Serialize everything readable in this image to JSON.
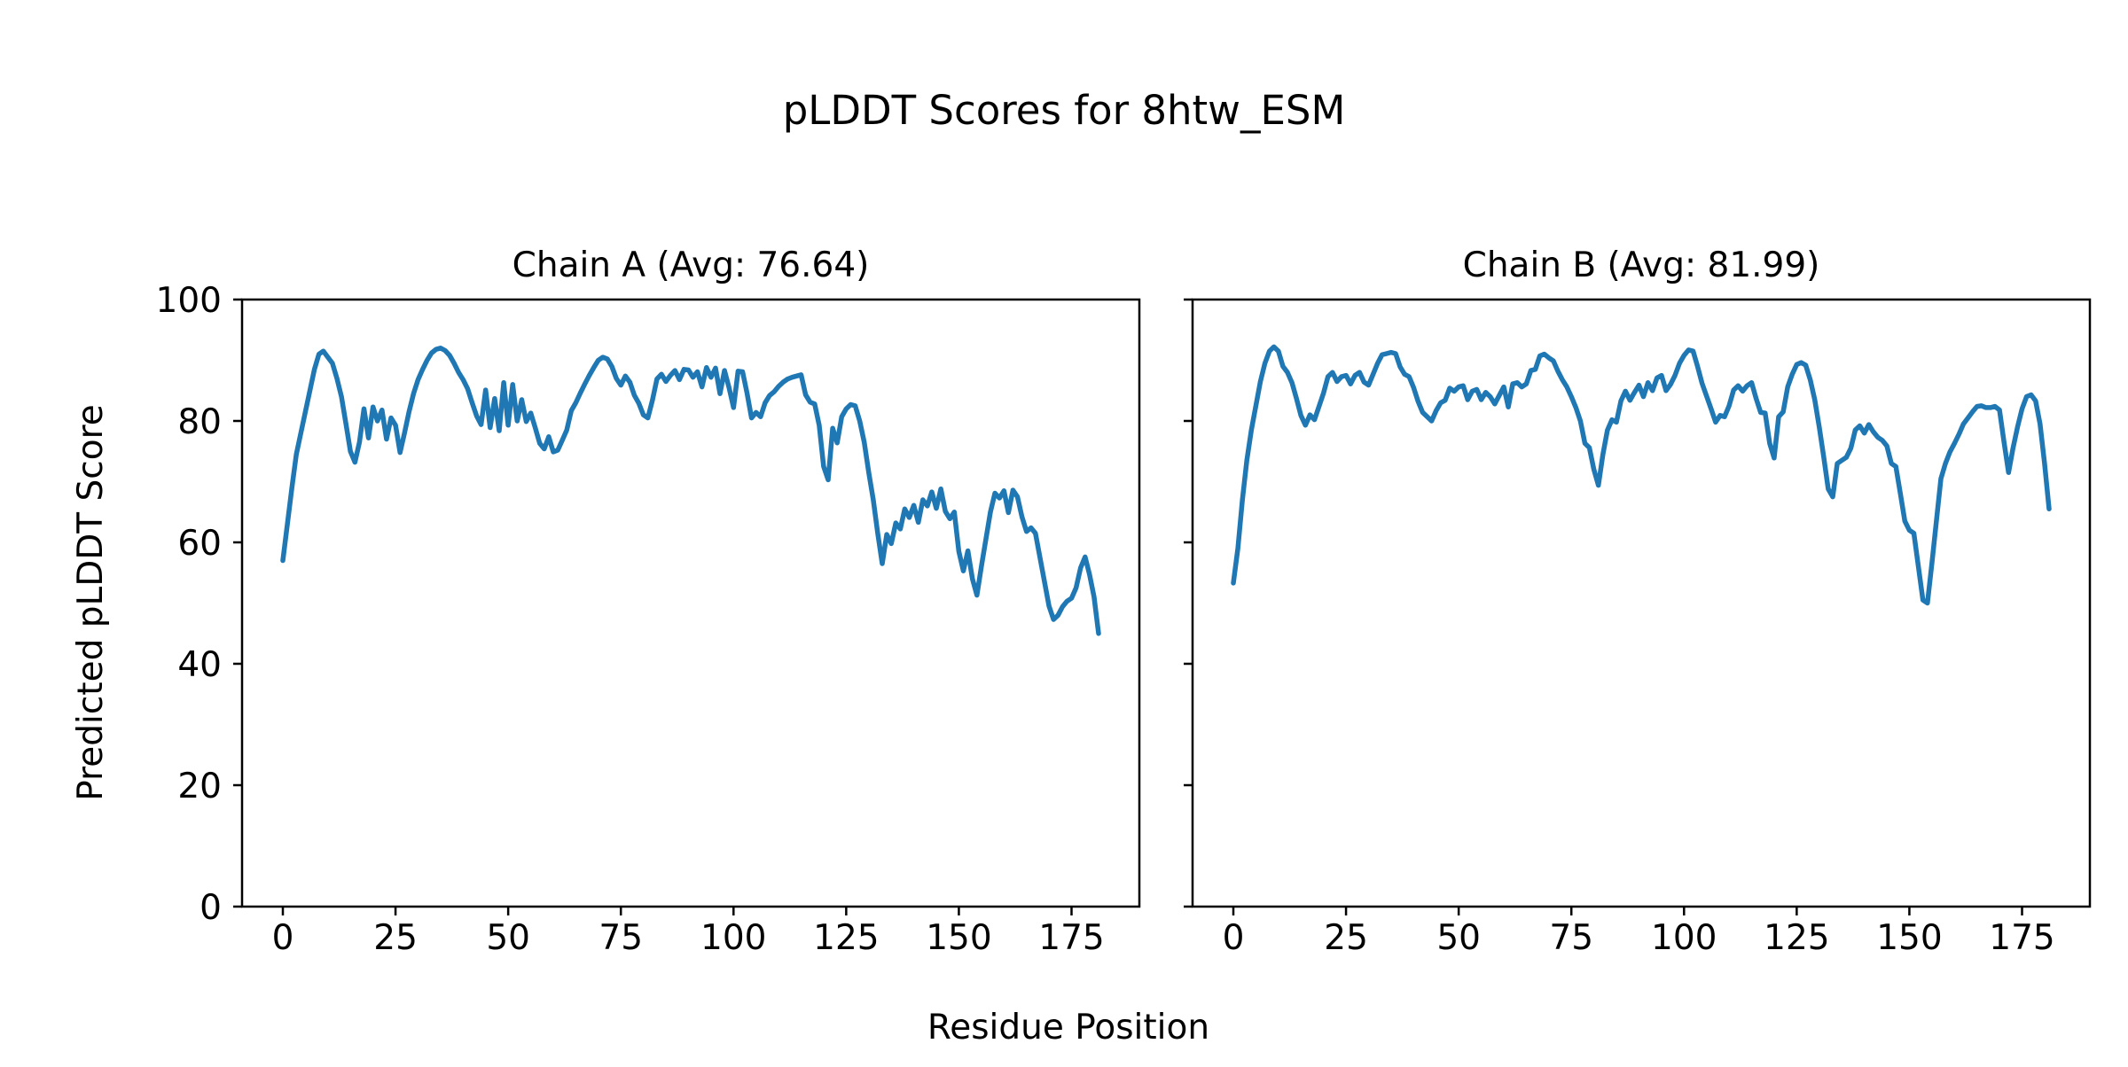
{
  "figure": {
    "title": "pLDDT Scores for 8htw_ESM",
    "xlabel": "Residue Position",
    "ylabel": "Predicted pLDDT Score",
    "line_color": "#1f77b4",
    "text_color": "#000000",
    "background": "#ffffff"
  },
  "chart_data": [
    {
      "type": "line",
      "title": "Chain A (Avg: 76.64)",
      "chain": "A",
      "average": 76.64,
      "xlabel": "Residue Position",
      "ylabel": "Predicted pLDDT Score",
      "xlim": [
        -9.05,
        190.05
      ],
      "ylim": [
        0,
        100
      ],
      "xticks": [
        0,
        25,
        50,
        75,
        100,
        125,
        150,
        175
      ],
      "yticks": [
        0,
        20,
        40,
        60,
        80,
        100
      ],
      "grid": false,
      "legend": false,
      "x_start": 0,
      "values": [
        57.0,
        63.0,
        69.0,
        74.5,
        78.0,
        81.5,
        85.0,
        88.5,
        91.0,
        91.5,
        90.5,
        89.5,
        87.0,
        84.0,
        79.5,
        75.0,
        73.2,
        76.5,
        82.0,
        77.2,
        82.3,
        80.0,
        81.8,
        77.0,
        80.5,
        79.3,
        74.8,
        78.0,
        81.5,
        84.5,
        86.8,
        88.5,
        90.0,
        91.2,
        91.8,
        92.0,
        91.6,
        90.8,
        89.5,
        88.0,
        86.8,
        85.3,
        83.0,
        80.8,
        79.4,
        85.1,
        78.9,
        83.7,
        78.4,
        86.3,
        79.3,
        86.0,
        80.0,
        83.5,
        79.9,
        81.3,
        78.9,
        76.3,
        75.4,
        77.4,
        74.9,
        75.2,
        76.8,
        78.5,
        81.7,
        83.0,
        84.6,
        86.1,
        87.5,
        88.8,
        90.0,
        90.5,
        90.2,
        89.0,
        87.0,
        85.9,
        87.4,
        86.4,
        84.2,
        82.9,
        81.0,
        80.5,
        83.4,
        86.9,
        87.7,
        86.5,
        87.5,
        88.3,
        86.8,
        88.5,
        88.4,
        87.2,
        88.1,
        85.6,
        88.8,
        87.2,
        88.7,
        84.5,
        88.3,
        85.5,
        82.2,
        88.2,
        88.1,
        84.6,
        80.5,
        81.4,
        80.7,
        83.0,
        84.2,
        84.8,
        85.7,
        86.4,
        86.9,
        87.2,
        87.4,
        87.6,
        84.3,
        83.1,
        82.8,
        79.3,
        72.5,
        70.3,
        78.8,
        76.4,
        80.7,
        82.0,
        82.7,
        82.5,
        80.0,
        76.5,
        71.5,
        67.0,
        61.5,
        56.5,
        61.3,
        59.8,
        63.2,
        62.2,
        65.5,
        64.1,
        66.1,
        63.3,
        67.0,
        66.0,
        68.3,
        65.6,
        68.8,
        65.1,
        63.9,
        65.0,
        58.5,
        55.3,
        58.6,
        54.0,
        51.3,
        56.0,
        60.5,
        65.0,
        68.1,
        67.3,
        68.5,
        64.9,
        68.6,
        67.5,
        64.2,
        61.8,
        62.4,
        61.5,
        57.5,
        53.5,
        49.5,
        47.3,
        48.0,
        49.4,
        50.3,
        50.8,
        52.5,
        55.8,
        57.6,
        54.7,
        51.0,
        45.0
      ]
    },
    {
      "type": "line",
      "title": "Chain B (Avg: 81.99)",
      "chain": "B",
      "average": 81.99,
      "xlabel": "Residue Position",
      "ylabel": "Predicted pLDDT Score",
      "xlim": [
        -9.05,
        190.05
      ],
      "ylim": [
        0,
        100
      ],
      "xticks": [
        0,
        25,
        50,
        75,
        100,
        125,
        150,
        175
      ],
      "yticks": [
        0,
        20,
        40,
        60,
        80,
        100
      ],
      "grid": false,
      "legend": false,
      "x_start": 0,
      "values": [
        53.3,
        59.0,
        67.0,
        73.5,
        78.5,
        82.5,
        86.5,
        89.5,
        91.5,
        92.2,
        91.5,
        89.0,
        88.0,
        86.3,
        83.7,
        80.9,
        79.3,
        81.0,
        80.2,
        82.4,
        84.6,
        87.3,
        88.0,
        86.5,
        87.3,
        87.5,
        86.1,
        87.5,
        88.0,
        86.4,
        85.9,
        87.7,
        89.5,
        90.9,
        91.1,
        91.3,
        91.1,
        88.9,
        87.7,
        87.3,
        85.5,
        83.2,
        81.4,
        80.7,
        80.0,
        81.7,
        83.0,
        83.4,
        85.4,
        84.9,
        85.6,
        85.8,
        83.5,
        84.9,
        85.2,
        83.5,
        84.7,
        84.0,
        82.8,
        84.2,
        85.6,
        82.3,
        86.1,
        86.3,
        85.6,
        86.1,
        88.3,
        88.5,
        90.7,
        91.0,
        90.4,
        89.9,
        88.2,
        86.8,
        85.6,
        84.0,
        82.2,
        80.0,
        76.3,
        75.6,
        72.0,
        69.4,
        74.5,
        78.5,
        80.2,
        79.8,
        83.3,
        84.9,
        83.4,
        84.7,
        85.9,
        84.0,
        86.3,
        85.0,
        87.1,
        87.5,
        85.0,
        86.0,
        87.5,
        89.5,
        90.8,
        91.7,
        91.5,
        89.0,
        86.2,
        84.1,
        82.0,
        79.8,
        80.9,
        80.7,
        82.5,
        85.1,
        85.8,
        84.9,
        85.8,
        86.3,
        83.7,
        81.4,
        81.3,
        76.3,
        73.9,
        80.7,
        81.5,
        85.6,
        87.7,
        89.3,
        89.6,
        89.2,
        86.8,
        83.5,
        79.0,
        74.0,
        68.8,
        67.5,
        73.0,
        73.5,
        74.0,
        75.5,
        78.5,
        79.2,
        78.0,
        79.4,
        78.2,
        77.3,
        76.8,
        75.9,
        73.0,
        72.5,
        68.0,
        63.5,
        62.0,
        61.5,
        56.0,
        50.5,
        50.0,
        56.5,
        63.5,
        70.5,
        73.0,
        74.9,
        76.3,
        77.8,
        79.5,
        80.5,
        81.5,
        82.4,
        82.5,
        82.2,
        82.2,
        82.4,
        81.8,
        76.5,
        71.5,
        75.5,
        79.0,
        82.0,
        84.0,
        84.3,
        83.3,
        79.5,
        73.0,
        65.5
      ]
    }
  ]
}
